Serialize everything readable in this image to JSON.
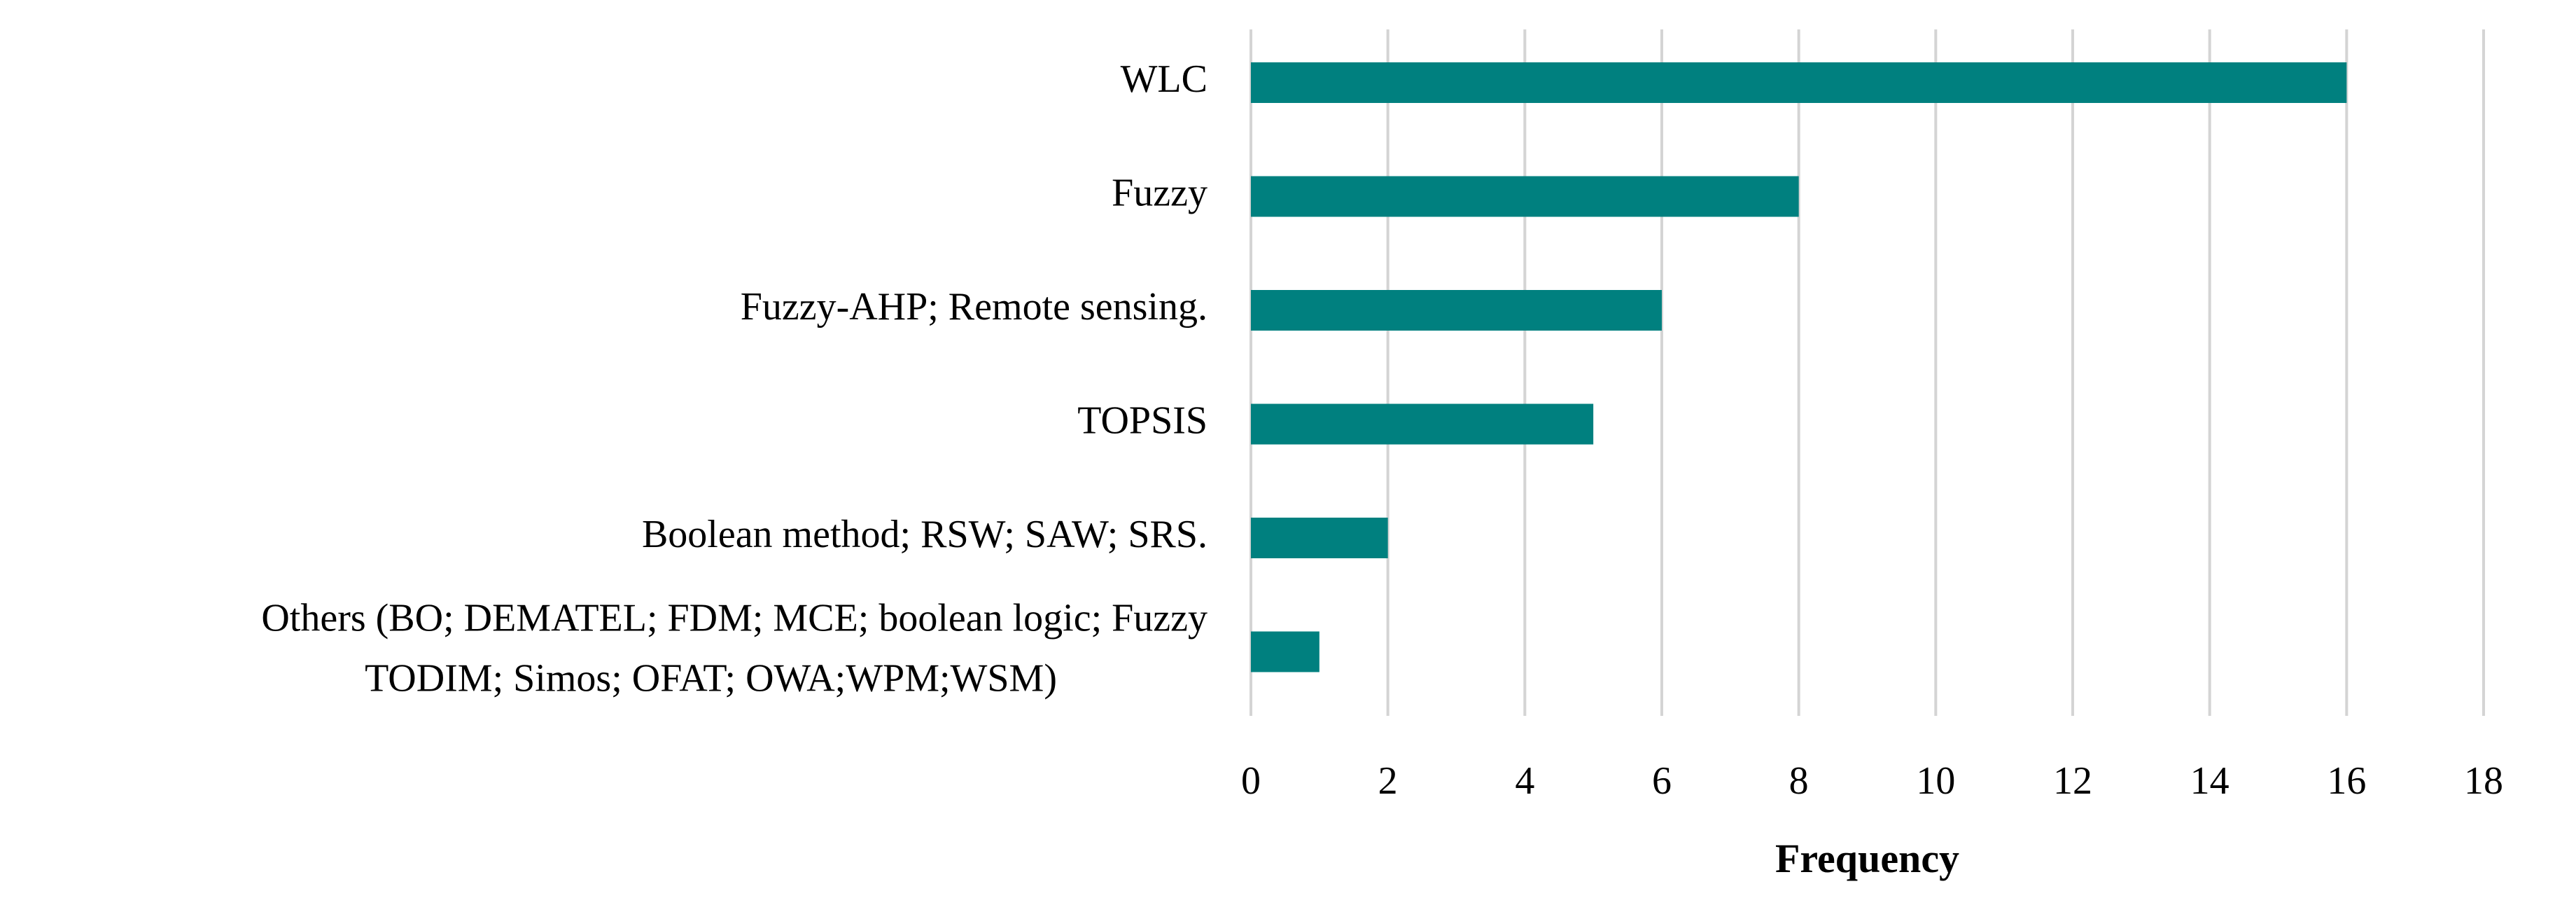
{
  "chart_data": {
    "type": "bar",
    "orientation": "horizontal",
    "categories": [
      "WLC",
      "Fuzzy",
      "Fuzzy-AHP; Remote sensing.",
      "TOPSIS",
      "Boolean method; RSW; SAW; SRS.",
      "Others (BO; DEMATEL; FDM; MCE; boolean logic; Fuzzy TODIM; Simos; OFAT; OWA;WPM;WSM)"
    ],
    "category_label_lines": [
      [
        "WLC"
      ],
      [
        "Fuzzy"
      ],
      [
        "Fuzzy-AHP; Remote sensing."
      ],
      [
        "TOPSIS"
      ],
      [
        "Boolean method; RSW; SAW; SRS."
      ],
      [
        "Others (BO; DEMATEL; FDM; MCE; boolean logic; Fuzzy",
        "TODIM; Simos; OFAT; OWA;WPM;WSM)"
      ]
    ],
    "values": [
      16,
      8,
      6,
      5,
      2,
      1
    ],
    "xlabel": "Frequency",
    "ylabel": "",
    "xlim": [
      0,
      18
    ],
    "xticks": [
      "0",
      "2",
      "4",
      "6",
      "8",
      "10",
      "12",
      "14",
      "16",
      "18"
    ],
    "grid": "vertical",
    "legend": "none",
    "bar_color": "#00807f",
    "grid_color": "#d4d4d4"
  }
}
